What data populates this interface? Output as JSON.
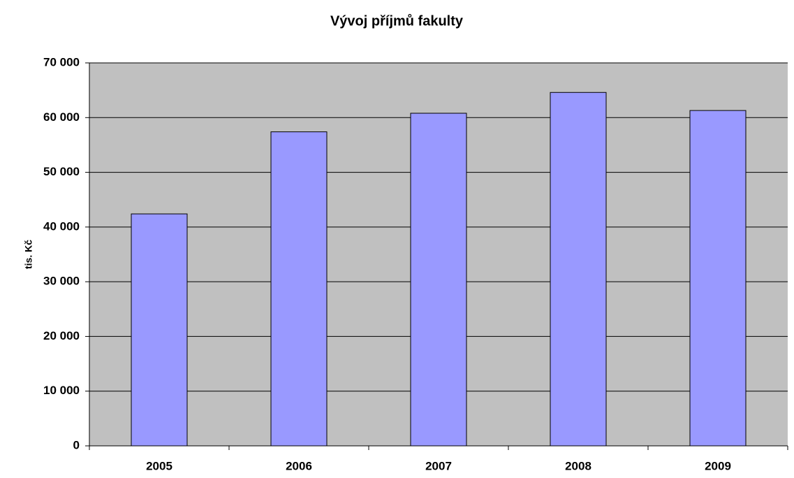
{
  "chart_data": {
    "type": "bar",
    "title": "Vývoj příjmů fakulty",
    "y_label": "tis. Kč",
    "categories": [
      "2005",
      "2006",
      "2007",
      "2008",
      "2009"
    ],
    "values": [
      42400,
      57400,
      60800,
      64600,
      61300
    ],
    "color": "#9999ff",
    "background": "#c0c0c0",
    "ylim": [
      0,
      70000
    ],
    "yticks": [
      0,
      {
        "value": 10000,
        "label": "10 000"
      },
      {
        "value": 20000,
        "label": "20 000"
      },
      {
        "value": 30000,
        "label": "30 000"
      },
      {
        "value": 40000,
        "label": "40 000"
      },
      {
        "value": 50000,
        "label": "50 000"
      },
      {
        "value": 60000,
        "label": "60 000"
      },
      {
        "value": 70000,
        "label": "70 000"
      }
    ],
    "grid": true
  }
}
